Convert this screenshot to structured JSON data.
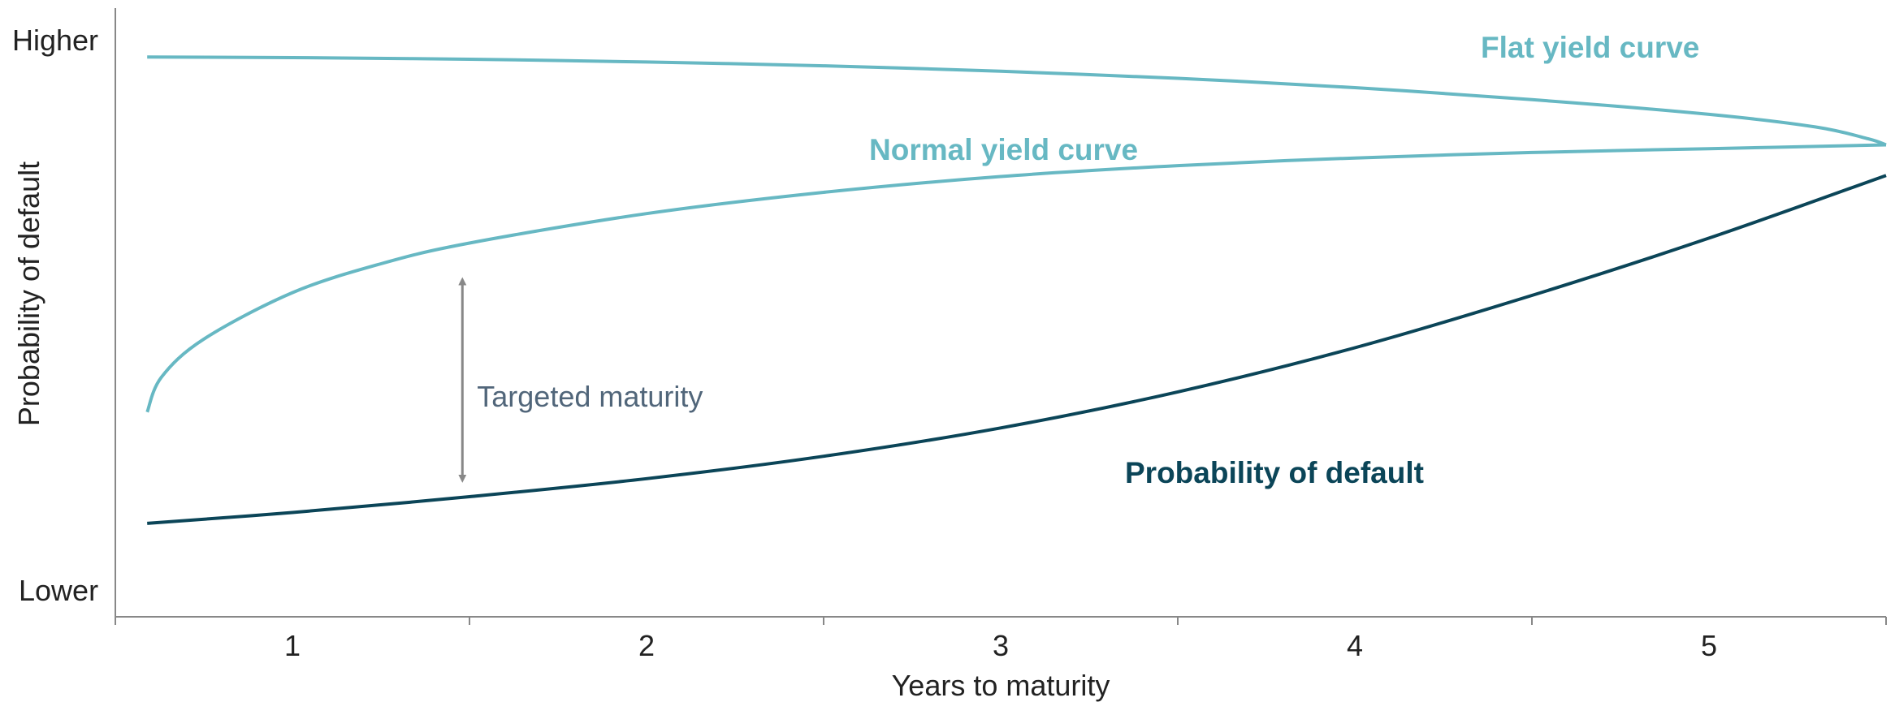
{
  "chart_data": {
    "type": "line",
    "x": {
      "label": "Years to maturity",
      "ticks": [
        1,
        2,
        3,
        4,
        5
      ],
      "range": [
        0.5,
        5.5
      ]
    },
    "y": {
      "label": "Probability of default",
      "top_label": "Higher",
      "bottom_label": "Lower",
      "range": [
        0,
        100
      ]
    },
    "series": [
      {
        "name": "Flat yield curve",
        "color": "#67b8c3",
        "points": [
          [
            0.59,
            93.7
          ],
          [
            1.0,
            93.6
          ],
          [
            1.5,
            93.3
          ],
          [
            2.0,
            92.8
          ],
          [
            2.5,
            92.1
          ],
          [
            3.0,
            91.1
          ],
          [
            3.5,
            89.8
          ],
          [
            4.0,
            88.1
          ],
          [
            4.5,
            85.9
          ],
          [
            5.0,
            83.2
          ],
          [
            5.3,
            80.9
          ],
          [
            5.45,
            78.7
          ],
          [
            5.5,
            77.6
          ]
        ]
      },
      {
        "name": "Normal yield curve",
        "color": "#67b8c3",
        "points": [
          [
            0.59,
            28.6
          ],
          [
            0.63,
            35.0
          ],
          [
            0.75,
            42.0
          ],
          [
            1.0,
            50.5
          ],
          [
            1.25,
            55.8
          ],
          [
            1.5,
            59.6
          ],
          [
            2.0,
            65.0
          ],
          [
            2.5,
            68.9
          ],
          [
            3.0,
            71.8
          ],
          [
            3.5,
            73.8
          ],
          [
            4.0,
            75.2
          ],
          [
            4.5,
            76.2
          ],
          [
            5.0,
            76.9
          ],
          [
            5.5,
            77.6
          ]
        ]
      },
      {
        "name": "Probability of default",
        "color": "#0b4558",
        "points": [
          [
            0.59,
            8.2
          ],
          [
            1.0,
            10.2
          ],
          [
            1.5,
            13.1
          ],
          [
            2.0,
            16.4
          ],
          [
            2.5,
            20.5
          ],
          [
            3.0,
            25.7
          ],
          [
            3.5,
            32.3
          ],
          [
            4.0,
            40.4
          ],
          [
            4.5,
            50.0
          ],
          [
            5.0,
            60.5
          ],
          [
            5.5,
            72.0
          ]
        ]
      }
    ],
    "annotations": [
      {
        "label": "Targeted maturity",
        "x": 1.48,
        "y_from": 15.5,
        "y_to": 53.5,
        "color": "#888888"
      }
    ]
  }
}
